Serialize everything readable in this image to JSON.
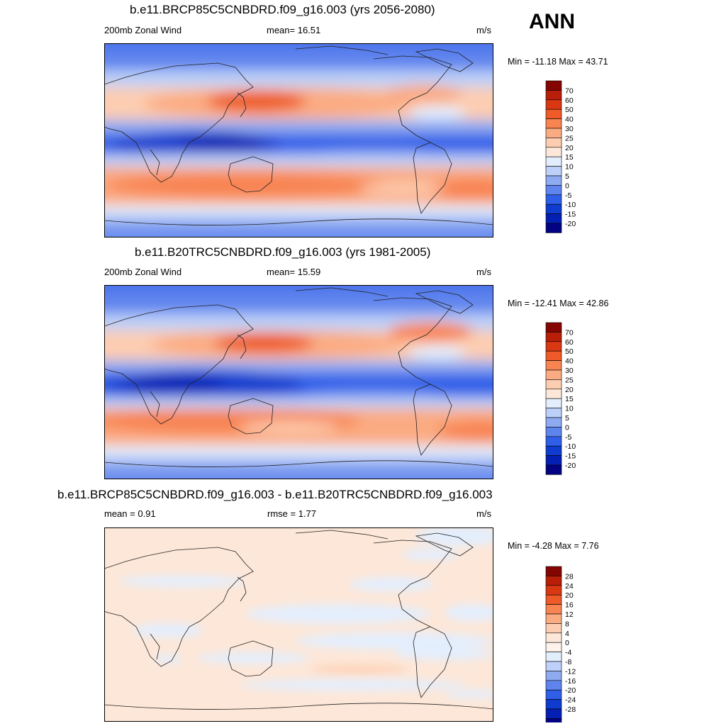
{
  "season": "ANN",
  "units": "m/s",
  "colors": {
    "full": [
      "#020283",
      "#0420b4",
      "#0f3ccf",
      "#2f5ee8",
      "#5e84ee",
      "#8eaaf1",
      "#bcd0f8",
      "#e3eefd",
      "#fde7d8",
      "#fdcdb1",
      "#fbab82",
      "#f88452",
      "#ee5a28",
      "#da3812",
      "#b81e08",
      "#840502"
    ],
    "diff": [
      "#020283",
      "#0420b4",
      "#0f3ccf",
      "#2f5ee8",
      "#5e84ee",
      "#8eaaf1",
      "#bcd0f8",
      "#e3eefd",
      "#fdf2ec",
      "#fde7d8",
      "#fdcdb1",
      "#fbab82",
      "#f88452",
      "#ee5a28",
      "#da3812",
      "#b81e08",
      "#840502"
    ]
  },
  "panels": [
    {
      "title": "b.e11.BRCP85C5CNBDRD.f09_g16.003 (yrs 2056-2080)",
      "left_label": "200mb Zonal Wind",
      "mean_text": "mean=  16.51",
      "units": "m/s",
      "minmax": "Min = -11.18 Max =  43.71",
      "colorbar_labels": [
        "70",
        "60",
        "50",
        "40",
        "30",
        "25",
        "20",
        "15",
        "10",
        "5",
        "0",
        "-5",
        "-10",
        "-15",
        "-20"
      ]
    },
    {
      "title": "b.e11.B20TRC5CNBDRD.f09_g16.003 (yrs 1981-2005)",
      "left_label": "200mb Zonal Wind",
      "mean_text": "mean=  15.59",
      "units": "m/s",
      "minmax": "Min = -12.41 Max =  42.86",
      "colorbar_labels": [
        "70",
        "60",
        "50",
        "40",
        "30",
        "25",
        "20",
        "15",
        "10",
        "5",
        "0",
        "-5",
        "-10",
        "-15",
        "-20"
      ]
    },
    {
      "title": "b.e11.BRCP85C5CNBDRD.f09_g16.003 - b.e11.B20TRC5CNBDRD.f09_g16.003",
      "left_label": "mean =   0.91",
      "mean_text": "rmse =   1.77",
      "units": "m/s",
      "minmax": "Min =  -4.28 Max =   7.76",
      "colorbar_labels": [
        "28",
        "24",
        "20",
        "16",
        "12",
        "8",
        "4",
        "0",
        "-4",
        "-8",
        "-12",
        "-16",
        "-20",
        "-24",
        "-28"
      ]
    }
  ]
}
